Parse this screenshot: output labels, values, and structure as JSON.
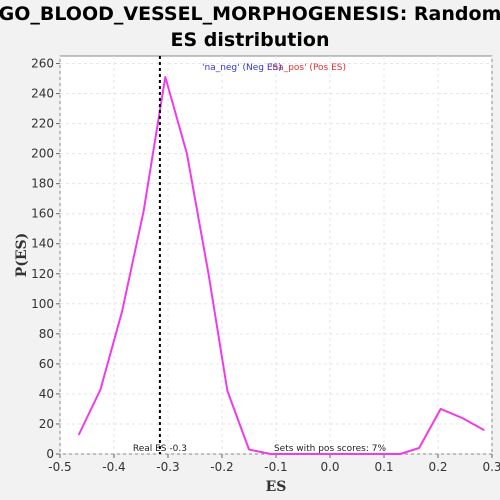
{
  "chart_data": {
    "type": "line",
    "title_line1": "GO_BLOOD_VESSEL_MORPHOGENESIS: Random",
    "title_line2": "ES distribution",
    "xlabel": "ES",
    "ylabel": "P(ES)",
    "xlim": [
      -0.5,
      0.3
    ],
    "ylim": [
      0,
      265
    ],
    "xticks": [
      -0.5,
      -0.4,
      -0.3,
      -0.2,
      -0.1,
      0.0,
      0.1,
      0.2,
      0.3
    ],
    "xtick_labels": [
      "-0.5",
      "-0.4",
      "-0.3",
      "-0.2",
      "-0.1",
      "0.0",
      "0.1",
      "0.2",
      "0.3"
    ],
    "yticks": [
      0,
      20,
      40,
      60,
      80,
      100,
      120,
      140,
      160,
      180,
      200,
      220,
      240,
      260
    ],
    "grid": true,
    "series": [
      {
        "color": "#ee3de8",
        "x": [
          -0.465,
          -0.425,
          -0.385,
          -0.345,
          -0.305,
          -0.265,
          -0.225,
          -0.19,
          -0.15,
          -0.11,
          -0.07,
          -0.03,
          0.01,
          0.05,
          0.09,
          0.13,
          0.165,
          0.205,
          0.245,
          0.285
        ],
        "y": [
          13,
          43,
          95,
          162,
          251,
          200,
          120,
          42,
          3,
          0,
          0,
          0,
          0,
          0,
          0,
          0,
          4,
          30,
          24,
          16
        ]
      }
    ],
    "real_es": {
      "value": -0.315,
      "label": "Real ES -0.3"
    },
    "legend": {
      "neg_text": "'na_neg' (Neg ES)",
      "neg_color": "#3333cc",
      "pos_text": "'na_pos' (Pos ES)",
      "pos_color": "#e03030"
    },
    "annotation": "Sets with pos scores: 7%"
  }
}
